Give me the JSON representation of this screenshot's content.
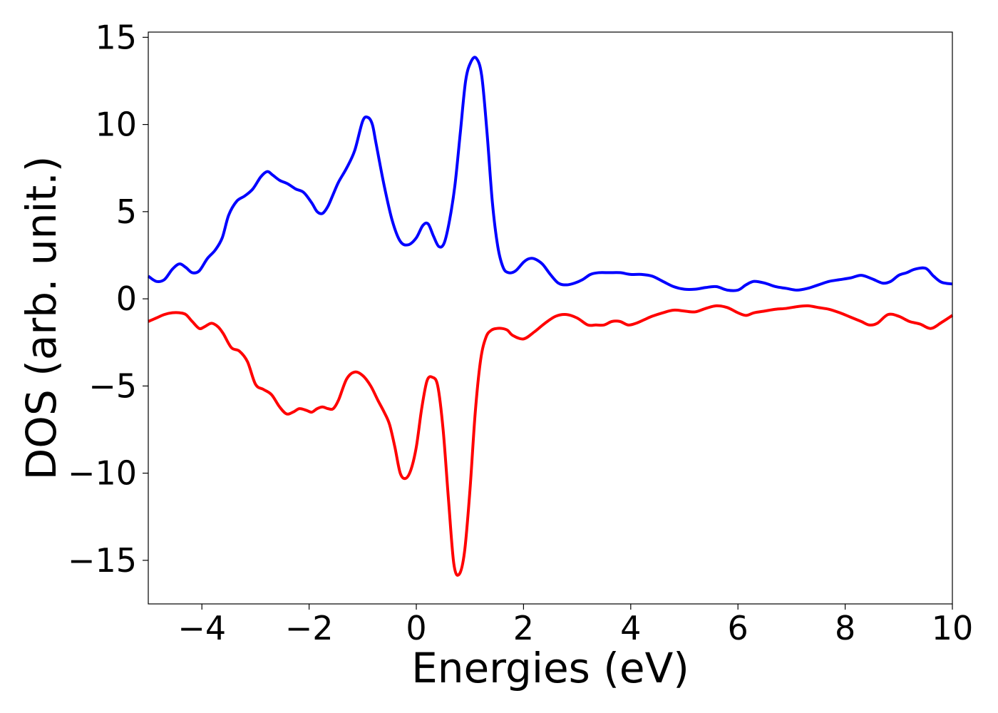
{
  "chart_data": {
    "type": "line",
    "title": "",
    "xlabel": "Energies (eV)",
    "ylabel": "DOS (arb. unit.)",
    "xlim": [
      -5,
      10
    ],
    "ylim": [
      -17.5,
      15.3
    ],
    "x_ticks": [
      -4,
      -2,
      0,
      2,
      4,
      6,
      8,
      10
    ],
    "y_ticks": [
      -15,
      -10,
      -5,
      0,
      5,
      10,
      15
    ],
    "x_tick_labels": [
      "−4",
      "−2",
      "0",
      "2",
      "4",
      "6",
      "8",
      "10"
    ],
    "y_tick_labels": [
      "−15",
      "−10",
      "−5",
      "0",
      "5",
      "10",
      "15"
    ],
    "grid": false,
    "legend": "none",
    "series": [
      {
        "color": "#0000ff",
        "x": [
          -5.0,
          -4.85,
          -4.7,
          -4.55,
          -4.42,
          -4.3,
          -4.18,
          -4.05,
          -3.9,
          -3.75,
          -3.62,
          -3.5,
          -3.35,
          -3.2,
          -3.05,
          -2.9,
          -2.78,
          -2.68,
          -2.55,
          -2.4,
          -2.25,
          -2.1,
          -1.95,
          -1.85,
          -1.75,
          -1.65,
          -1.55,
          -1.45,
          -1.3,
          -1.15,
          -1.0,
          -0.9,
          -0.82,
          -0.75,
          -0.6,
          -0.45,
          -0.3,
          -0.15,
          0.0,
          0.12,
          0.22,
          0.32,
          0.42,
          0.52,
          0.62,
          0.72,
          0.82,
          0.92,
          1.02,
          1.12,
          1.22,
          1.32,
          1.42,
          1.52,
          1.62,
          1.72,
          1.85,
          2.0,
          2.1,
          2.2,
          2.35,
          2.5,
          2.65,
          2.8,
          2.95,
          3.1,
          3.25,
          3.4,
          3.6,
          3.8,
          4.0,
          4.2,
          4.4,
          4.6,
          4.8,
          5.0,
          5.2,
          5.4,
          5.6,
          5.8,
          6.0,
          6.15,
          6.3,
          6.5,
          6.7,
          6.9,
          7.1,
          7.3,
          7.5,
          7.7,
          7.9,
          8.1,
          8.3,
          8.5,
          8.7,
          8.85,
          9.0,
          9.15,
          9.3,
          9.5,
          9.65,
          9.8,
          10.0
        ],
        "values": [
          1.3,
          1.0,
          1.1,
          1.7,
          2.0,
          1.8,
          1.5,
          1.6,
          2.3,
          2.8,
          3.5,
          4.8,
          5.6,
          5.9,
          6.3,
          7.0,
          7.3,
          7.1,
          6.8,
          6.6,
          6.3,
          6.1,
          5.5,
          5.0,
          4.9,
          5.3,
          6.0,
          6.7,
          7.5,
          8.5,
          10.2,
          10.4,
          10.0,
          8.9,
          6.5,
          4.5,
          3.3,
          3.1,
          3.5,
          4.2,
          4.3,
          3.6,
          3.0,
          3.2,
          4.5,
          6.5,
          9.5,
          12.5,
          13.6,
          13.8,
          12.8,
          9.5,
          5.5,
          3.0,
          1.8,
          1.5,
          1.6,
          2.1,
          2.3,
          2.3,
          2.0,
          1.4,
          0.9,
          0.8,
          0.9,
          1.1,
          1.4,
          1.5,
          1.5,
          1.5,
          1.4,
          1.4,
          1.3,
          1.0,
          0.7,
          0.55,
          0.55,
          0.65,
          0.7,
          0.5,
          0.5,
          0.8,
          1.0,
          0.9,
          0.7,
          0.6,
          0.5,
          0.6,
          0.8,
          1.0,
          1.1,
          1.2,
          1.35,
          1.15,
          0.9,
          1.0,
          1.35,
          1.5,
          1.7,
          1.75,
          1.3,
          0.95,
          0.85
        ],
        "line_width": 4
      },
      {
        "color": "#ff0000",
        "x": [
          -5.0,
          -4.85,
          -4.7,
          -4.55,
          -4.42,
          -4.3,
          -4.18,
          -4.05,
          -3.95,
          -3.82,
          -3.7,
          -3.6,
          -3.45,
          -3.3,
          -3.15,
          -3.0,
          -2.85,
          -2.7,
          -2.55,
          -2.42,
          -2.3,
          -2.18,
          -2.05,
          -1.95,
          -1.85,
          -1.75,
          -1.65,
          -1.55,
          -1.45,
          -1.3,
          -1.15,
          -1.0,
          -0.85,
          -0.72,
          -0.6,
          -0.5,
          -0.4,
          -0.3,
          -0.2,
          -0.1,
          0.0,
          0.1,
          0.2,
          0.3,
          0.4,
          0.5,
          0.6,
          0.7,
          0.8,
          0.9,
          1.0,
          1.1,
          1.2,
          1.3,
          1.4,
          1.5,
          1.6,
          1.7,
          1.8,
          2.0,
          2.2,
          2.4,
          2.6,
          2.8,
          3.0,
          3.2,
          3.35,
          3.5,
          3.65,
          3.8,
          3.95,
          4.1,
          4.25,
          4.4,
          4.6,
          4.8,
          5.0,
          5.2,
          5.4,
          5.6,
          5.8,
          6.0,
          6.15,
          6.3,
          6.5,
          6.7,
          6.9,
          7.1,
          7.3,
          7.5,
          7.7,
          7.9,
          8.1,
          8.3,
          8.45,
          8.6,
          8.8,
          9.0,
          9.2,
          9.4,
          9.6,
          9.8,
          10.0
        ],
        "values": [
          -1.3,
          -1.1,
          -0.9,
          -0.8,
          -0.8,
          -0.9,
          -1.3,
          -1.7,
          -1.6,
          -1.4,
          -1.6,
          -2.0,
          -2.8,
          -3.0,
          -3.6,
          -4.9,
          -5.2,
          -5.5,
          -6.2,
          -6.6,
          -6.5,
          -6.3,
          -6.4,
          -6.5,
          -6.3,
          -6.2,
          -6.3,
          -6.3,
          -5.8,
          -4.6,
          -4.2,
          -4.4,
          -5.0,
          -5.8,
          -6.5,
          -7.2,
          -8.5,
          -10.0,
          -10.3,
          -9.8,
          -8.5,
          -6.3,
          -4.7,
          -4.5,
          -5.0,
          -7.5,
          -11.5,
          -15.2,
          -15.8,
          -14.5,
          -11.0,
          -6.5,
          -3.5,
          -2.2,
          -1.8,
          -1.7,
          -1.7,
          -1.8,
          -2.1,
          -2.3,
          -1.9,
          -1.4,
          -1.0,
          -0.9,
          -1.1,
          -1.5,
          -1.5,
          -1.5,
          -1.3,
          -1.3,
          -1.5,
          -1.4,
          -1.2,
          -1.0,
          -0.8,
          -0.65,
          -0.7,
          -0.75,
          -0.55,
          -0.4,
          -0.5,
          -0.8,
          -0.95,
          -0.8,
          -0.7,
          -0.6,
          -0.55,
          -0.45,
          -0.4,
          -0.5,
          -0.6,
          -0.8,
          -1.05,
          -1.3,
          -1.5,
          -1.4,
          -0.9,
          -1.0,
          -1.3,
          -1.45,
          -1.7,
          -1.35,
          -0.95
        ]
      }
    ]
  }
}
